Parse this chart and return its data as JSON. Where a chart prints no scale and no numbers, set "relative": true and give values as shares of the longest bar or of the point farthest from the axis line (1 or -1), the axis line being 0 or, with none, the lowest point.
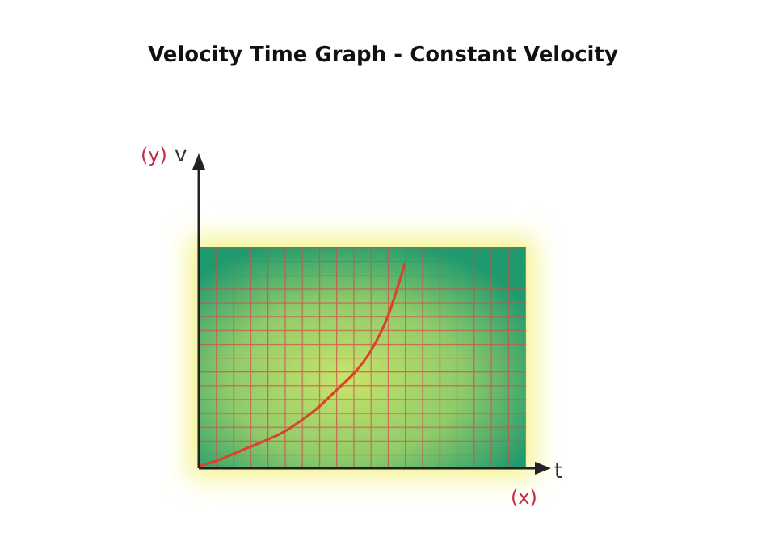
{
  "chart_data": {
    "type": "line",
    "title": "Velocity Time Graph - Constant Velocity",
    "ylabel": "v",
    "annotations": [
      "(y)",
      "t",
      "(x)"
    ],
    "relative": true,
    "marker": "none",
    "line_style": "solid",
    "categories": [
      null,
      null,
      null,
      null,
      null,
      null,
      null,
      null,
      null,
      null,
      null,
      null,
      null,
      null,
      null,
      null,
      null,
      null,
      null,
      null
    ],
    "series": [
      {
        "color": "#d9452b",
        "values": [
          0.01,
          0.035,
          0.07,
          0.105,
          0.14,
          0.18,
          0.235,
          0.3,
          0.38,
          0.46,
          0.57,
          0.74,
          1,
          null,
          null,
          null,
          null,
          null,
          null,
          null
        ]
      }
    ]
  }
}
